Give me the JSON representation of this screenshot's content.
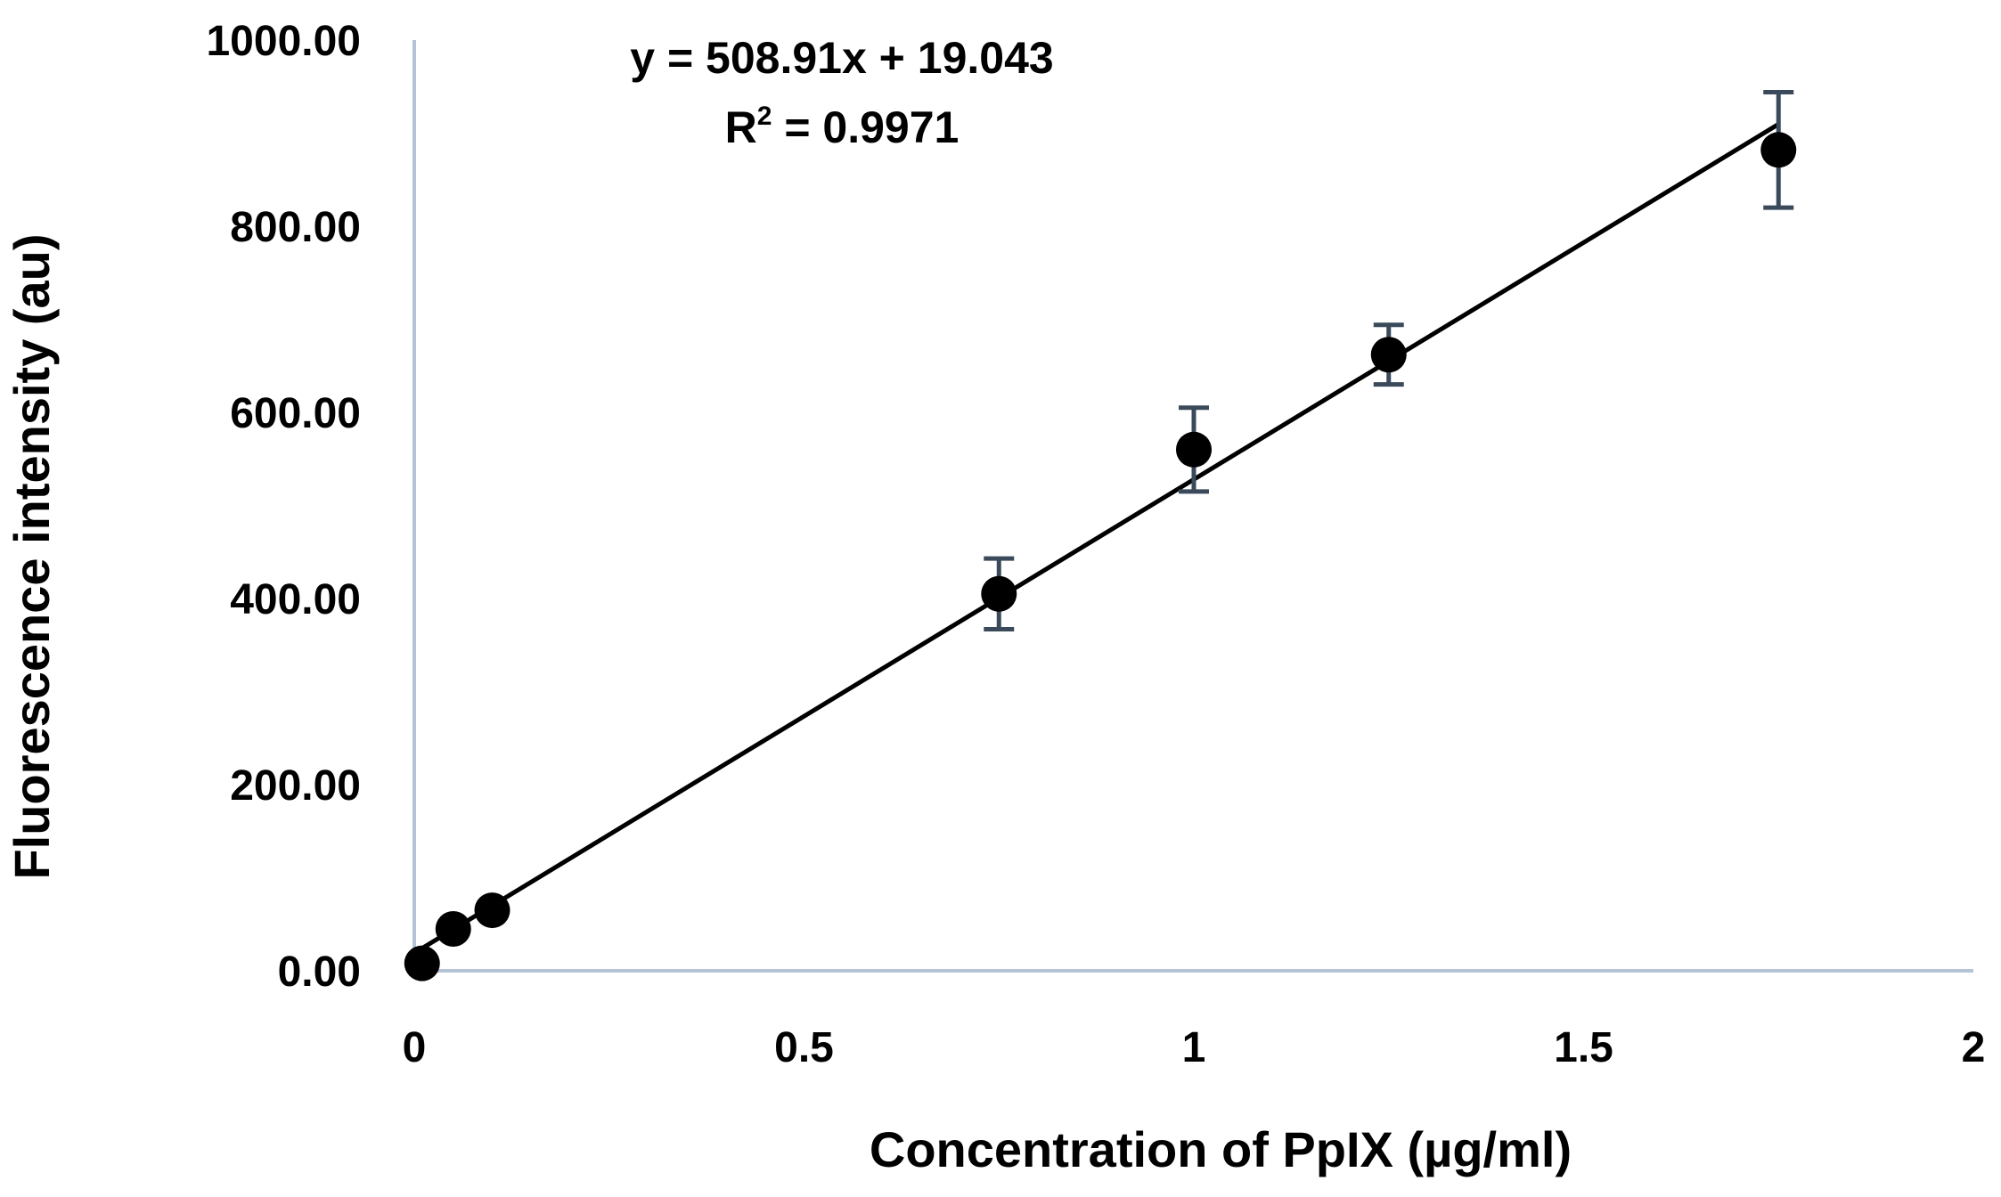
{
  "chart_data": {
    "type": "scatter",
    "title": "",
    "xlabel": "Concentration of PpIX (µg/ml)",
    "ylabel": "Fluorescence intensity (au)",
    "xlim": [
      0,
      2
    ],
    "ylim": [
      0,
      1000
    ],
    "x_ticks": [
      "0",
      "0.5",
      "1",
      "1.5",
      "2"
    ],
    "y_ticks": [
      "0.00",
      "200.00",
      "400.00",
      "600.00",
      "800.00",
      "1000.00"
    ],
    "grid": false,
    "legend": "none",
    "trendline": {
      "type": "linear",
      "slope": 508.91,
      "intercept": 19.043,
      "equation": "y = 508.91x + 19.043",
      "r_squared_prefix": "R",
      "r_squared_sup": "2",
      "r_squared_value": " = 0.9971"
    },
    "series": [
      {
        "x": [
          0.01,
          0.05,
          0.1,
          0.75,
          1.0,
          1.25,
          1.75
        ],
        "y": [
          8,
          45,
          65,
          405,
          560,
          662,
          882
        ],
        "error": [
          0,
          0,
          0,
          38,
          45,
          32,
          62
        ]
      }
    ],
    "colors": {
      "axis": "#b4c3d6",
      "marker": "#000000",
      "error_bar": "#3a4a5a",
      "trendline": "#000000"
    }
  }
}
